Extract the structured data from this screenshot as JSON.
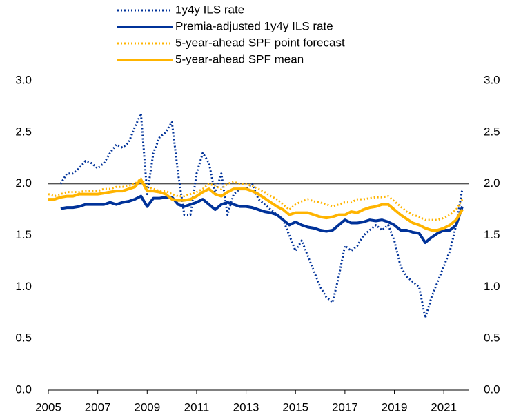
{
  "chart_data": {
    "type": "line",
    "x": [
      2005,
      2005.25,
      2005.5,
      2005.75,
      2006,
      2006.25,
      2006.5,
      2006.75,
      2007,
      2007.25,
      2007.5,
      2007.75,
      2008,
      2008.25,
      2008.5,
      2008.75,
      2009,
      2009.25,
      2009.5,
      2009.75,
      2010,
      2010.25,
      2010.5,
      2010.75,
      2011,
      2011.25,
      2011.5,
      2011.75,
      2012,
      2012.25,
      2012.5,
      2012.75,
      2013,
      2013.25,
      2013.5,
      2013.75,
      2014,
      2014.25,
      2014.5,
      2014.75,
      2015,
      2015.25,
      2015.5,
      2015.75,
      2016,
      2016.25,
      2016.5,
      2016.75,
      2017,
      2017.25,
      2017.5,
      2017.75,
      2018,
      2018.25,
      2018.5,
      2018.75,
      2019,
      2019.25,
      2019.5,
      2019.75,
      2020,
      2020.25,
      2020.5,
      2020.75,
      2021,
      2021.25,
      2021.5,
      2021.75
    ],
    "series": [
      {
        "name": "1y4y ILS rate",
        "color": "#003299",
        "dotted": true,
        "values": [
          null,
          null,
          2.0,
          2.1,
          2.1,
          2.15,
          2.22,
          2.2,
          2.15,
          2.2,
          2.3,
          2.38,
          2.35,
          2.4,
          2.55,
          2.68,
          1.9,
          2.3,
          2.45,
          2.5,
          2.6,
          2.1,
          1.7,
          1.7,
          2.1,
          2.3,
          2.2,
          1.9,
          2.1,
          1.7,
          1.9,
          1.95,
          1.95,
          2.0,
          1.85,
          1.8,
          1.75,
          1.7,
          1.65,
          1.5,
          1.35,
          1.45,
          1.3,
          1.15,
          1.0,
          0.9,
          0.85,
          1.1,
          1.4,
          1.35,
          1.4,
          1.5,
          1.55,
          1.6,
          1.55,
          1.6,
          1.45,
          1.2,
          1.1,
          1.05,
          1.0,
          0.7,
          0.9,
          1.05,
          1.2,
          1.35,
          1.6,
          1.95
        ]
      },
      {
        "name": "Premia-adjusted 1y4y ILS rate",
        "color": "#003299",
        "dotted": false,
        "values": [
          null,
          null,
          1.76,
          1.77,
          1.77,
          1.78,
          1.8,
          1.8,
          1.8,
          1.8,
          1.82,
          1.8,
          1.82,
          1.83,
          1.85,
          1.88,
          1.78,
          1.86,
          1.86,
          1.87,
          1.87,
          1.8,
          1.78,
          1.8,
          1.82,
          1.85,
          1.8,
          1.75,
          1.8,
          1.82,
          1.8,
          1.78,
          1.78,
          1.77,
          1.75,
          1.73,
          1.72,
          1.7,
          1.65,
          1.6,
          1.63,
          1.6,
          1.58,
          1.57,
          1.55,
          1.54,
          1.55,
          1.6,
          1.65,
          1.62,
          1.62,
          1.63,
          1.65,
          1.64,
          1.65,
          1.63,
          1.6,
          1.55,
          1.55,
          1.53,
          1.52,
          1.43,
          1.48,
          1.52,
          1.55,
          1.55,
          1.6,
          1.78
        ]
      },
      {
        "name": "5-year-ahead SPF point forecast",
        "color": "#ffb400",
        "dotted": true,
        "values": [
          1.9,
          1.88,
          1.9,
          1.92,
          1.92,
          1.92,
          1.93,
          1.93,
          1.93,
          1.95,
          1.95,
          1.97,
          1.97,
          1.98,
          2.0,
          2.05,
          1.97,
          1.95,
          1.93,
          1.93,
          1.9,
          1.88,
          1.88,
          1.9,
          1.92,
          1.95,
          2.0,
          1.98,
          1.95,
          2.0,
          2.02,
          2.0,
          2.0,
          1.98,
          1.95,
          1.92,
          1.88,
          1.85,
          1.8,
          1.75,
          1.8,
          1.83,
          1.85,
          1.83,
          1.82,
          1.8,
          1.78,
          1.8,
          1.82,
          1.82,
          1.85,
          1.85,
          1.86,
          1.87,
          1.87,
          1.88,
          1.83,
          1.78,
          1.73,
          1.7,
          1.68,
          1.65,
          1.65,
          1.65,
          1.67,
          1.7,
          1.75,
          1.85
        ]
      },
      {
        "name": "5-year-ahead SPF mean",
        "color": "#ffb400",
        "dotted": false,
        "values": [
          1.85,
          1.85,
          1.87,
          1.88,
          1.88,
          1.9,
          1.9,
          1.9,
          1.9,
          1.91,
          1.92,
          1.93,
          1.93,
          1.95,
          1.97,
          2.04,
          1.93,
          1.93,
          1.92,
          1.9,
          1.85,
          1.84,
          1.84,
          1.85,
          1.88,
          1.92,
          1.95,
          1.9,
          1.88,
          1.92,
          1.95,
          1.95,
          1.95,
          1.93,
          1.9,
          1.86,
          1.82,
          1.78,
          1.75,
          1.7,
          1.72,
          1.72,
          1.72,
          1.7,
          1.68,
          1.67,
          1.68,
          1.7,
          1.7,
          1.73,
          1.72,
          1.75,
          1.77,
          1.78,
          1.8,
          1.8,
          1.75,
          1.7,
          1.66,
          1.62,
          1.6,
          1.57,
          1.55,
          1.55,
          1.57,
          1.6,
          1.65,
          1.75
        ]
      }
    ],
    "xlim": [
      2005,
      2022
    ],
    "xticks": [
      2005,
      2007,
      2009,
      2011,
      2013,
      2015,
      2017,
      2019,
      2021
    ],
    "ylim": [
      0,
      3
    ],
    "yticks": [
      {
        "value": 0,
        "label": "0.0"
      },
      0.5,
      {
        "value": 1,
        "label": "1.0"
      },
      1.5,
      {
        "value": 2,
        "label": "2.0"
      },
      2.5,
      {
        "value": 3,
        "label": "3.0"
      }
    ],
    "y2lim": [
      0,
      3
    ],
    "y2ticks": [
      {
        "value": 0,
        "label": "0.0"
      },
      0.5,
      {
        "value": 1,
        "label": "1.0"
      },
      1.5,
      {
        "value": 2,
        "label": "2.0"
      },
      2.5,
      {
        "value": 3,
        "label": "3.0"
      }
    ],
    "reference_line": 2
  }
}
